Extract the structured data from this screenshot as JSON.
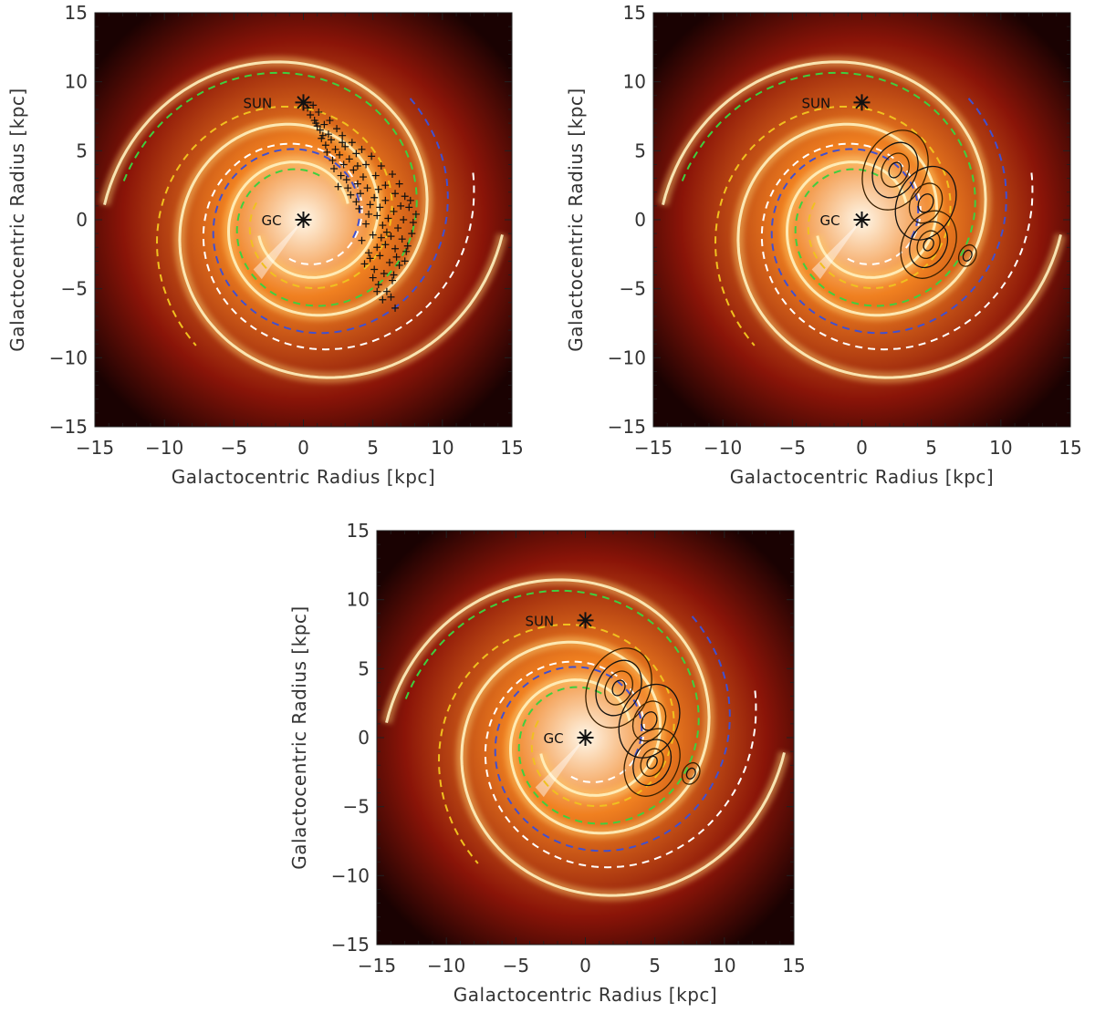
{
  "figure": {
    "axis_label_x": "Galactocentric Radius [kpc]",
    "axis_label_y": "Galactocentric Radius [kpc]",
    "sun_label": "SUN",
    "gc_label": "GC"
  },
  "colors": {
    "map_center": "#fff7e8",
    "map_mid": "#f08020",
    "map_outer": "#8a1408",
    "map_edge": "#1a0202",
    "spiral_arm": "#ffd070",
    "ring_white": "#ffffff",
    "ring_green": "#3fcf3f",
    "ring_yellow": "#f0c020",
    "ring_blue": "#4050d0",
    "markers": "#111111"
  },
  "chart_data": [
    {
      "type": "scatter",
      "panel": "top-left",
      "xlabel": "Galactocentric Radius [kpc]",
      "ylabel": "Galactocentric Radius [kpc]",
      "xlim": [
        -15,
        15
      ],
      "ylim": [
        -15,
        15
      ],
      "xticks": [
        -15,
        -10,
        -5,
        0,
        5,
        10,
        15
      ],
      "yticks": [
        -15,
        -10,
        -5,
        0,
        5,
        10,
        15
      ],
      "sun": [
        0,
        8.5
      ],
      "gc": [
        0,
        0
      ],
      "points": [
        [
          0.3,
          8.1
        ],
        [
          0.5,
          7.6
        ],
        [
          0.8,
          7.2
        ],
        [
          1.0,
          6.8
        ],
        [
          1.2,
          6.5
        ],
        [
          1.5,
          6.9
        ],
        [
          1.8,
          6.2
        ],
        [
          1.3,
          5.9
        ],
        [
          1.6,
          5.4
        ],
        [
          2.0,
          5.8
        ],
        [
          2.3,
          5.1
        ],
        [
          2.6,
          4.7
        ],
        [
          2.1,
          4.3
        ],
        [
          2.9,
          4.0
        ],
        [
          3.3,
          4.4
        ],
        [
          3.6,
          3.6
        ],
        [
          2.7,
          3.2
        ],
        [
          3.1,
          2.9
        ],
        [
          3.9,
          2.6
        ],
        [
          4.3,
          3.1
        ],
        [
          4.6,
          2.3
        ],
        [
          4.1,
          1.9
        ],
        [
          5.1,
          1.6
        ],
        [
          4.8,
          1.1
        ],
        [
          5.5,
          0.9
        ],
        [
          5.9,
          1.4
        ],
        [
          5.3,
          0.3
        ],
        [
          6.1,
          0.1
        ],
        [
          6.5,
          0.6
        ],
        [
          5.7,
          -0.4
        ],
        [
          6.8,
          -0.6
        ],
        [
          6.3,
          -1.2
        ],
        [
          7.1,
          -1.4
        ],
        [
          5.9,
          -1.8
        ],
        [
          6.6,
          -2.1
        ],
        [
          7.4,
          -2.3
        ],
        [
          5.5,
          -2.6
        ],
        [
          6.2,
          -3.1
        ],
        [
          6.9,
          -3.3
        ],
        [
          5.1,
          -3.6
        ],
        [
          5.8,
          -3.9
        ],
        [
          6.4,
          -4.4
        ],
        [
          5.4,
          -4.7
        ],
        [
          6.0,
          -5.2
        ],
        [
          5.7,
          -5.8
        ],
        [
          6.6,
          -6.4
        ],
        [
          7.6,
          0.9
        ],
        [
          7.9,
          -0.2
        ],
        [
          7.3,
          1.7
        ],
        [
          6.9,
          2.6
        ],
        [
          6.4,
          3.3
        ],
        [
          5.6,
          3.9
        ],
        [
          4.9,
          4.6
        ],
        [
          4.2,
          5.1
        ],
        [
          3.5,
          5.6
        ],
        [
          2.8,
          6.1
        ],
        [
          2.4,
          6.6
        ],
        [
          1.9,
          7.2
        ],
        [
          1.1,
          7.8
        ],
        [
          0.7,
          8.3
        ],
        [
          2.5,
          2.4
        ],
        [
          3.4,
          1.8
        ],
        [
          4.0,
          0.8
        ],
        [
          4.5,
          -0.3
        ],
        [
          4.2,
          -1.5
        ],
        [
          4.7,
          -2.4
        ],
        [
          4.4,
          -3.2
        ],
        [
          5.0,
          -4.2
        ],
        [
          7.7,
          1.4
        ],
        [
          8.1,
          0.4
        ],
        [
          7.8,
          -1.0
        ],
        [
          7.5,
          -1.9
        ],
        [
          3.0,
          5.3
        ],
        [
          3.8,
          4.8
        ],
        [
          4.5,
          4.0
        ],
        [
          5.2,
          3.2
        ],
        [
          5.9,
          2.5
        ],
        [
          6.6,
          1.9
        ],
        [
          7.0,
          1.0
        ],
        [
          7.2,
          0.0
        ],
        [
          4.7,
          0.4
        ],
        [
          5.0,
          -1.1
        ],
        [
          5.3,
          -2.0
        ],
        [
          3.8,
          1.3
        ],
        [
          3.2,
          2.3
        ],
        [
          2.2,
          3.7
        ],
        [
          1.7,
          4.9
        ],
        [
          1.4,
          6.1
        ],
        [
          0.9,
          7.0
        ],
        [
          2.8,
          5.6
        ],
        [
          3.9,
          3.9
        ],
        [
          5.4,
          2.2
        ],
        [
          6.0,
          -0.9
        ],
        [
          6.7,
          -2.7
        ],
        [
          7.3,
          -3.0
        ],
        [
          6.5,
          -4.0
        ],
        [
          5.3,
          -5.2
        ],
        [
          6.3,
          -5.6
        ],
        [
          4.8,
          -2.8
        ],
        [
          5.6,
          -1.3
        ]
      ]
    },
    {
      "type": "contour",
      "panel": "top-right",
      "xlabel": "Galactocentric Radius [kpc]",
      "ylabel": "Galactocentric Radius [kpc]",
      "xlim": [
        -15,
        15
      ],
      "ylim": [
        -15,
        15
      ],
      "xticks": [
        -15,
        -10,
        -5,
        0,
        5,
        10,
        15
      ],
      "yticks": [
        -15,
        -10,
        -5,
        0,
        5,
        10,
        15
      ],
      "sun": [
        0,
        8.5
      ],
      "gc": [
        0,
        0
      ],
      "contour_peaks": [
        {
          "x": 2.4,
          "y": 3.6,
          "radii": [
            0.5,
            1.1,
            1.8,
            2.6
          ]
        },
        {
          "x": 4.8,
          "y": -1.8,
          "radii": [
            0.4,
            0.9,
            1.5,
            2.2
          ]
        },
        {
          "x": 7.6,
          "y": -2.6,
          "radii": [
            0.35,
            0.7
          ]
        },
        {
          "x": 4.6,
          "y": 1.2,
          "radii": [
            0.6,
            1.3,
            2.4
          ]
        }
      ]
    },
    {
      "type": "contour",
      "panel": "bottom",
      "xlabel": "Galactocentric Radius [kpc]",
      "ylabel": "Galactocentric Radius [kpc]",
      "xlim": [
        -15,
        15
      ],
      "ylim": [
        -15,
        15
      ],
      "xticks": [
        -15,
        -10,
        -5,
        0,
        5,
        10,
        15
      ],
      "yticks": [
        -15,
        -10,
        -5,
        0,
        5,
        10,
        15
      ],
      "sun": [
        0,
        8.5
      ],
      "gc": [
        0,
        0
      ],
      "contour_peaks": [
        {
          "x": 2.4,
          "y": 3.6,
          "radii": [
            0.5,
            1.1,
            1.8,
            2.6
          ]
        },
        {
          "x": 4.8,
          "y": -1.8,
          "radii": [
            0.4,
            0.9,
            1.5,
            2.2
          ]
        },
        {
          "x": 7.6,
          "y": -2.6,
          "radii": [
            0.35,
            0.7
          ]
        },
        {
          "x": 4.6,
          "y": 1.2,
          "radii": [
            0.6,
            1.3,
            2.4
          ]
        }
      ]
    }
  ]
}
